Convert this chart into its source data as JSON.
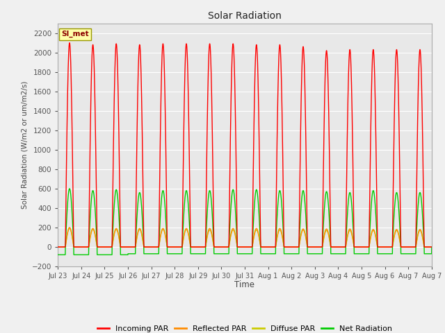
{
  "title": "Solar Radiation",
  "ylabel": "Solar Radiation (W/m2 or um/m2/s)",
  "xlabel": "Time",
  "ylim": [
    -200,
    2300
  ],
  "yticks": [
    -200,
    0,
    200,
    400,
    600,
    800,
    1000,
    1200,
    1400,
    1600,
    1800,
    2000,
    2200
  ],
  "n_days": 16,
  "peak_incoming": [
    2100,
    2080,
    2090,
    2080,
    2090,
    2090,
    2090,
    2090,
    2080,
    2080,
    2060,
    2020,
    2030,
    2030,
    2030,
    2030
  ],
  "peak_net": [
    600,
    580,
    590,
    560,
    580,
    580,
    580,
    590,
    590,
    580,
    580,
    570,
    560,
    580,
    560,
    560
  ],
  "peak_reflected": [
    200,
    190,
    190,
    190,
    190,
    190,
    190,
    190,
    190,
    190,
    185,
    185,
    185,
    180,
    180,
    180
  ],
  "peak_diffuse": [
    190,
    180,
    180,
    180,
    180,
    180,
    175,
    175,
    175,
    175,
    175,
    170,
    170,
    170,
    170,
    170
  ],
  "night_net": [
    -80,
    -80,
    -80,
    -70,
    -70,
    -70,
    -70,
    -70,
    -70,
    -70,
    -70,
    -70,
    -70,
    -70,
    -70,
    -70
  ],
  "colors": {
    "incoming": "#ff0000",
    "reflected": "#ff8c00",
    "diffuse": "#cccc00",
    "net": "#00cc00"
  },
  "legend_label": "SI_met",
  "xtick_labels": [
    "Jul 23",
    "Jul 24",
    "Jul 25",
    "Jul 26",
    "Jul 27",
    "Jul 28",
    "Jul 29",
    "Jul 30",
    "Jul 31",
    "Aug 1",
    "Aug 2",
    "Aug 3",
    "Aug 4",
    "Aug 5",
    "Aug 6",
    "Aug 7",
    "Aug 7"
  ],
  "legend_entries": [
    "Incoming PAR",
    "Reflected PAR",
    "Diffuse PAR",
    "Net Radiation"
  ],
  "legend_colors": [
    "#ff0000",
    "#ff8c00",
    "#cccc00",
    "#00cc00"
  ],
  "fig_bg": "#f0f0f0",
  "ax_bg": "#e8e8e8"
}
